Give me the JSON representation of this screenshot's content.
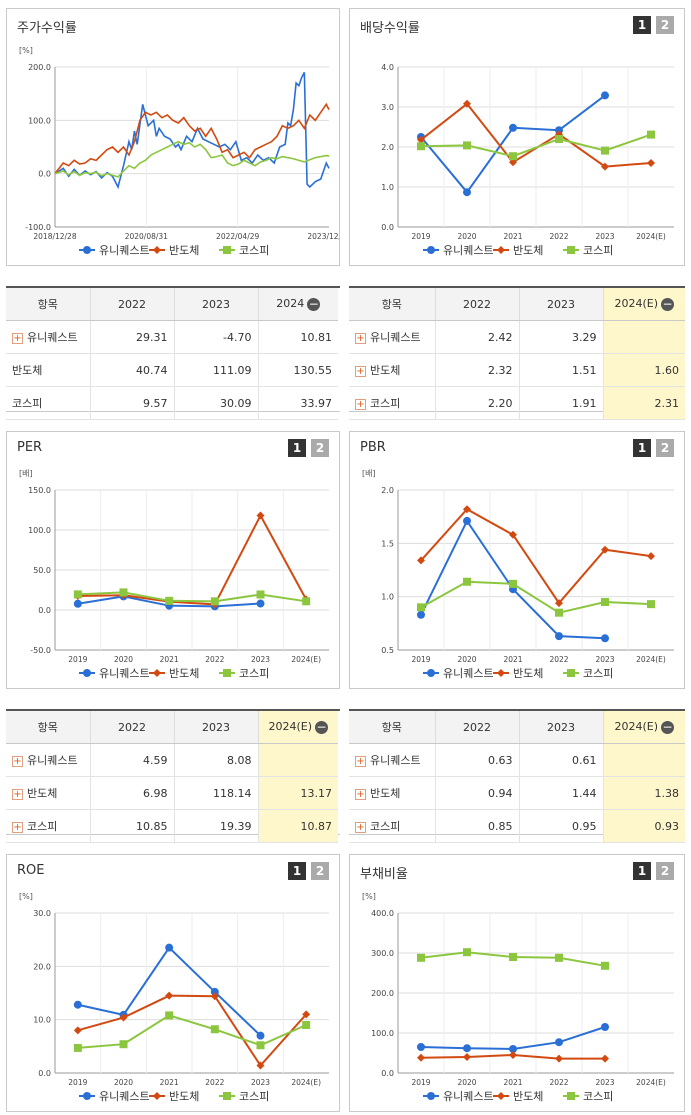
{
  "series_names": [
    "유니퀘스트",
    "반도체",
    "코스피"
  ],
  "colors": {
    "s1": "#2a6fd6",
    "s2": "#d24a12",
    "s3": "#8cc63f",
    "est": "#fff7cc"
  },
  "pager": {
    "p1": "1",
    "p2": "2"
  },
  "panels": [
    {
      "id": "stock",
      "title": "주가수익률",
      "pager": false,
      "chart_data": {
        "type": "line",
        "unit": "[%]",
        "yticks": [
          "200.0",
          "100.0",
          "0.0",
          "-100.0"
        ],
        "ylim": [
          -100,
          200
        ],
        "xticks": [
          "2018/12/28",
          "2020/08/31",
          "2022/04/29",
          "2023/12/28"
        ],
        "xlim": [
          0,
          100
        ],
        "series": [
          {
            "name": "유니퀘스트",
            "x": [
              0,
              3,
              5,
              7,
              9,
              11,
              13,
              15,
              17,
              19,
              21,
              23,
              25,
              27,
              28,
              29,
              30,
              32,
              34,
              36,
              37,
              38,
              40,
              42,
              44,
              45,
              46,
              48,
              50,
              52,
              54,
              56,
              58,
              60,
              62,
              64,
              66,
              68,
              70,
              72,
              74,
              76,
              78,
              80,
              82,
              84,
              85,
              86,
              87,
              88,
              89,
              90,
              91,
              92,
              93,
              95,
              97,
              99,
              100
            ],
            "y": [
              0,
              10,
              -5,
              8,
              -3,
              5,
              -2,
              4,
              -8,
              2,
              -5,
              -25,
              15,
              60,
              45,
              80,
              55,
              130,
              90,
              100,
              70,
              85,
              70,
              65,
              50,
              55,
              45,
              70,
              60,
              85,
              65,
              60,
              55,
              50,
              55,
              45,
              60,
              25,
              30,
              20,
              35,
              25,
              30,
              20,
              50,
              55,
              95,
              90,
              120,
              170,
              165,
              180,
              190,
              -20,
              -25,
              -15,
              -10,
              20,
              10
            ]
          },
          {
            "name": "반도체",
            "x": [
              0,
              3,
              5,
              7,
              9,
              11,
              13,
              15,
              17,
              19,
              21,
              23,
              25,
              27,
              29,
              31,
              33,
              35,
              37,
              39,
              41,
              43,
              45,
              47,
              49,
              51,
              53,
              55,
              57,
              59,
              61,
              63,
              65,
              67,
              69,
              71,
              73,
              75,
              77,
              79,
              81,
              83,
              85,
              87,
              89,
              91,
              93,
              95,
              97,
              99,
              100
            ],
            "y": [
              0,
              20,
              15,
              25,
              18,
              20,
              28,
              25,
              35,
              45,
              50,
              40,
              50,
              35,
              60,
              100,
              115,
              110,
              115,
              105,
              110,
              100,
              95,
              105,
              90,
              80,
              85,
              70,
              85,
              65,
              40,
              45,
              30,
              35,
              40,
              30,
              45,
              50,
              55,
              60,
              70,
              90,
              85,
              90,
              100,
              85,
              110,
              100,
              115,
              130,
              120
            ]
          },
          {
            "name": "코스피",
            "x": [
              0,
              3,
              5,
              7,
              9,
              11,
              13,
              15,
              17,
              19,
              21,
              23,
              25,
              27,
              29,
              31,
              33,
              35,
              37,
              39,
              41,
              43,
              45,
              47,
              49,
              51,
              53,
              55,
              57,
              59,
              61,
              63,
              65,
              67,
              69,
              71,
              73,
              75,
              77,
              79,
              81,
              83,
              85,
              87,
              89,
              91,
              93,
              95,
              97,
              99,
              100
            ],
            "y": [
              0,
              5,
              -2,
              4,
              -3,
              2,
              0,
              3,
              -4,
              0,
              -3,
              -6,
              5,
              15,
              10,
              20,
              25,
              35,
              40,
              45,
              50,
              55,
              60,
              55,
              58,
              50,
              55,
              45,
              30,
              32,
              35,
              20,
              15,
              18,
              25,
              20,
              15,
              22,
              25,
              30,
              28,
              32,
              30,
              28,
              25,
              22,
              26,
              30,
              32,
              34,
              33
            ]
          }
        ]
      }
    },
    {
      "id": "dividend",
      "title": "배당수익률",
      "pager": true,
      "chart_data": {
        "type": "line",
        "unit": "",
        "yticks": [
          "4.0",
          "3.0",
          "2.0",
          "1.0",
          "0.0"
        ],
        "ylim": [
          0,
          4
        ],
        "categories": [
          "2019",
          "2020",
          "2021",
          "2022",
          "2023",
          "2024(E)"
        ],
        "series": [
          {
            "name": "유니퀘스트",
            "values": [
              2.25,
              0.87,
              2.48,
              2.42,
              3.29,
              null
            ]
          },
          {
            "name": "반도체",
            "values": [
              2.18,
              3.08,
              1.62,
              2.32,
              1.51,
              1.6
            ]
          },
          {
            "name": "코스피",
            "values": [
              2.02,
              2.04,
              1.77,
              2.2,
              1.91,
              2.31
            ]
          }
        ]
      }
    },
    {
      "id": "per",
      "title": "PER",
      "pager": true,
      "chart_data": {
        "type": "line",
        "unit": "[배]",
        "yticks": [
          "150.0",
          "100.0",
          "50.0",
          "0.0",
          "-50.0"
        ],
        "ylim": [
          -50,
          150
        ],
        "categories": [
          "2019",
          "2020",
          "2021",
          "2022",
          "2023",
          "2024(E)"
        ],
        "series": [
          {
            "name": "유니퀘스트",
            "values": [
              7.8,
              17.0,
              5.4,
              4.59,
              8.08,
              null
            ]
          },
          {
            "name": "반도체",
            "values": [
              17.5,
              18.5,
              10.5,
              6.98,
              118.14,
              13.17
            ]
          },
          {
            "name": "코스피",
            "values": [
              19.5,
              22.0,
              11.5,
              10.85,
              19.39,
              10.87
            ]
          }
        ]
      }
    },
    {
      "id": "pbr",
      "title": "PBR",
      "pager": true,
      "chart_data": {
        "type": "line",
        "unit": "[배]",
        "yticks": [
          "2.0",
          "1.5",
          "1.0",
          "0.5"
        ],
        "ylim": [
          0.5,
          2.0
        ],
        "categories": [
          "2019",
          "2020",
          "2021",
          "2022",
          "2023",
          "2024(E)"
        ],
        "series": [
          {
            "name": "유니퀘스트",
            "values": [
              0.83,
              1.71,
              1.07,
              0.63,
              0.61,
              null
            ]
          },
          {
            "name": "반도체",
            "values": [
              1.34,
              1.82,
              1.58,
              0.94,
              1.44,
              1.38
            ]
          },
          {
            "name": "코스피",
            "values": [
              0.9,
              1.14,
              1.12,
              0.85,
              0.95,
              0.93
            ]
          }
        ]
      }
    },
    {
      "id": "roe",
      "title": "ROE",
      "pager": true,
      "chart_data": {
        "type": "line",
        "unit": "[%]",
        "yticks": [
          "30.0",
          "20.0",
          "10.0",
          "0.0"
        ],
        "ylim": [
          0,
          30
        ],
        "categories": [
          "2019",
          "2020",
          "2021",
          "2022",
          "2023",
          "2024(E)"
        ],
        "series": [
          {
            "name": "유니퀘스트",
            "values": [
              12.8,
              10.9,
              23.5,
              15.2,
              7.0,
              null
            ]
          },
          {
            "name": "반도체",
            "values": [
              8.0,
              10.4,
              14.5,
              14.4,
              1.4,
              11.0
            ]
          },
          {
            "name": "코스피",
            "values": [
              4.7,
              5.4,
              10.8,
              8.2,
              5.2,
              9.0
            ]
          }
        ]
      }
    },
    {
      "id": "debt",
      "title": "부채비율",
      "pager": true,
      "chart_data": {
        "type": "line",
        "unit": "[%]",
        "yticks": [
          "400.0",
          "300.0",
          "200.0",
          "100.0",
          "0.0"
        ],
        "ylim": [
          0,
          400
        ],
        "categories": [
          "2019",
          "2020",
          "2021",
          "2022",
          "2023",
          "2024(E)"
        ],
        "series": [
          {
            "name": "유니퀘스트",
            "values": [
              65,
              62,
              60,
              77,
              115,
              null
            ]
          },
          {
            "name": "반도체",
            "values": [
              38,
              40,
              45,
              36,
              36,
              null
            ]
          },
          {
            "name": "코스피",
            "values": [
              288,
              302,
              290,
              288,
              268,
              null
            ]
          }
        ]
      }
    }
  ],
  "tables": [
    {
      "id": "stock",
      "header": [
        "항목",
        "2022",
        "2023",
        "2024"
      ],
      "minus": true,
      "rows": [
        {
          "name": "유니퀘스트",
          "plus": true,
          "cells": [
            "29.31",
            "-4.70",
            "10.81"
          ]
        },
        {
          "name": "반도체",
          "plus": false,
          "cells": [
            "40.74",
            "111.09",
            "130.55"
          ]
        },
        {
          "name": "코스피",
          "plus": false,
          "cells": [
            "9.57",
            "30.09",
            "33.97"
          ]
        }
      ],
      "est": false
    },
    {
      "id": "dividend",
      "header": [
        "항목",
        "2022",
        "2023",
        "2024(E)"
      ],
      "minus": true,
      "rows": [
        {
          "name": "유니퀘스트",
          "plus": true,
          "cells": [
            "2.42",
            "3.29",
            ""
          ]
        },
        {
          "name": "반도체",
          "plus": true,
          "cells": [
            "2.32",
            "1.51",
            "1.60"
          ]
        },
        {
          "name": "코스피",
          "plus": true,
          "cells": [
            "2.20",
            "1.91",
            "2.31"
          ]
        }
      ],
      "est": true
    },
    {
      "id": "per",
      "header": [
        "항목",
        "2022",
        "2023",
        "2024(E)"
      ],
      "minus": true,
      "rows": [
        {
          "name": "유니퀘스트",
          "plus": true,
          "cells": [
            "4.59",
            "8.08",
            ""
          ]
        },
        {
          "name": "반도체",
          "plus": true,
          "cells": [
            "6.98",
            "118.14",
            "13.17"
          ]
        },
        {
          "name": "코스피",
          "plus": true,
          "cells": [
            "10.85",
            "19.39",
            "10.87"
          ]
        }
      ],
      "est": true
    },
    {
      "id": "pbr",
      "header": [
        "항목",
        "2022",
        "2023",
        "2024(E)"
      ],
      "minus": true,
      "rows": [
        {
          "name": "유니퀘스트",
          "plus": true,
          "cells": [
            "0.63",
            "0.61",
            ""
          ]
        },
        {
          "name": "반도체",
          "plus": true,
          "cells": [
            "0.94",
            "1.44",
            "1.38"
          ]
        },
        {
          "name": "코스피",
          "plus": true,
          "cells": [
            "0.85",
            "0.95",
            "0.93"
          ]
        }
      ],
      "est": true
    }
  ]
}
